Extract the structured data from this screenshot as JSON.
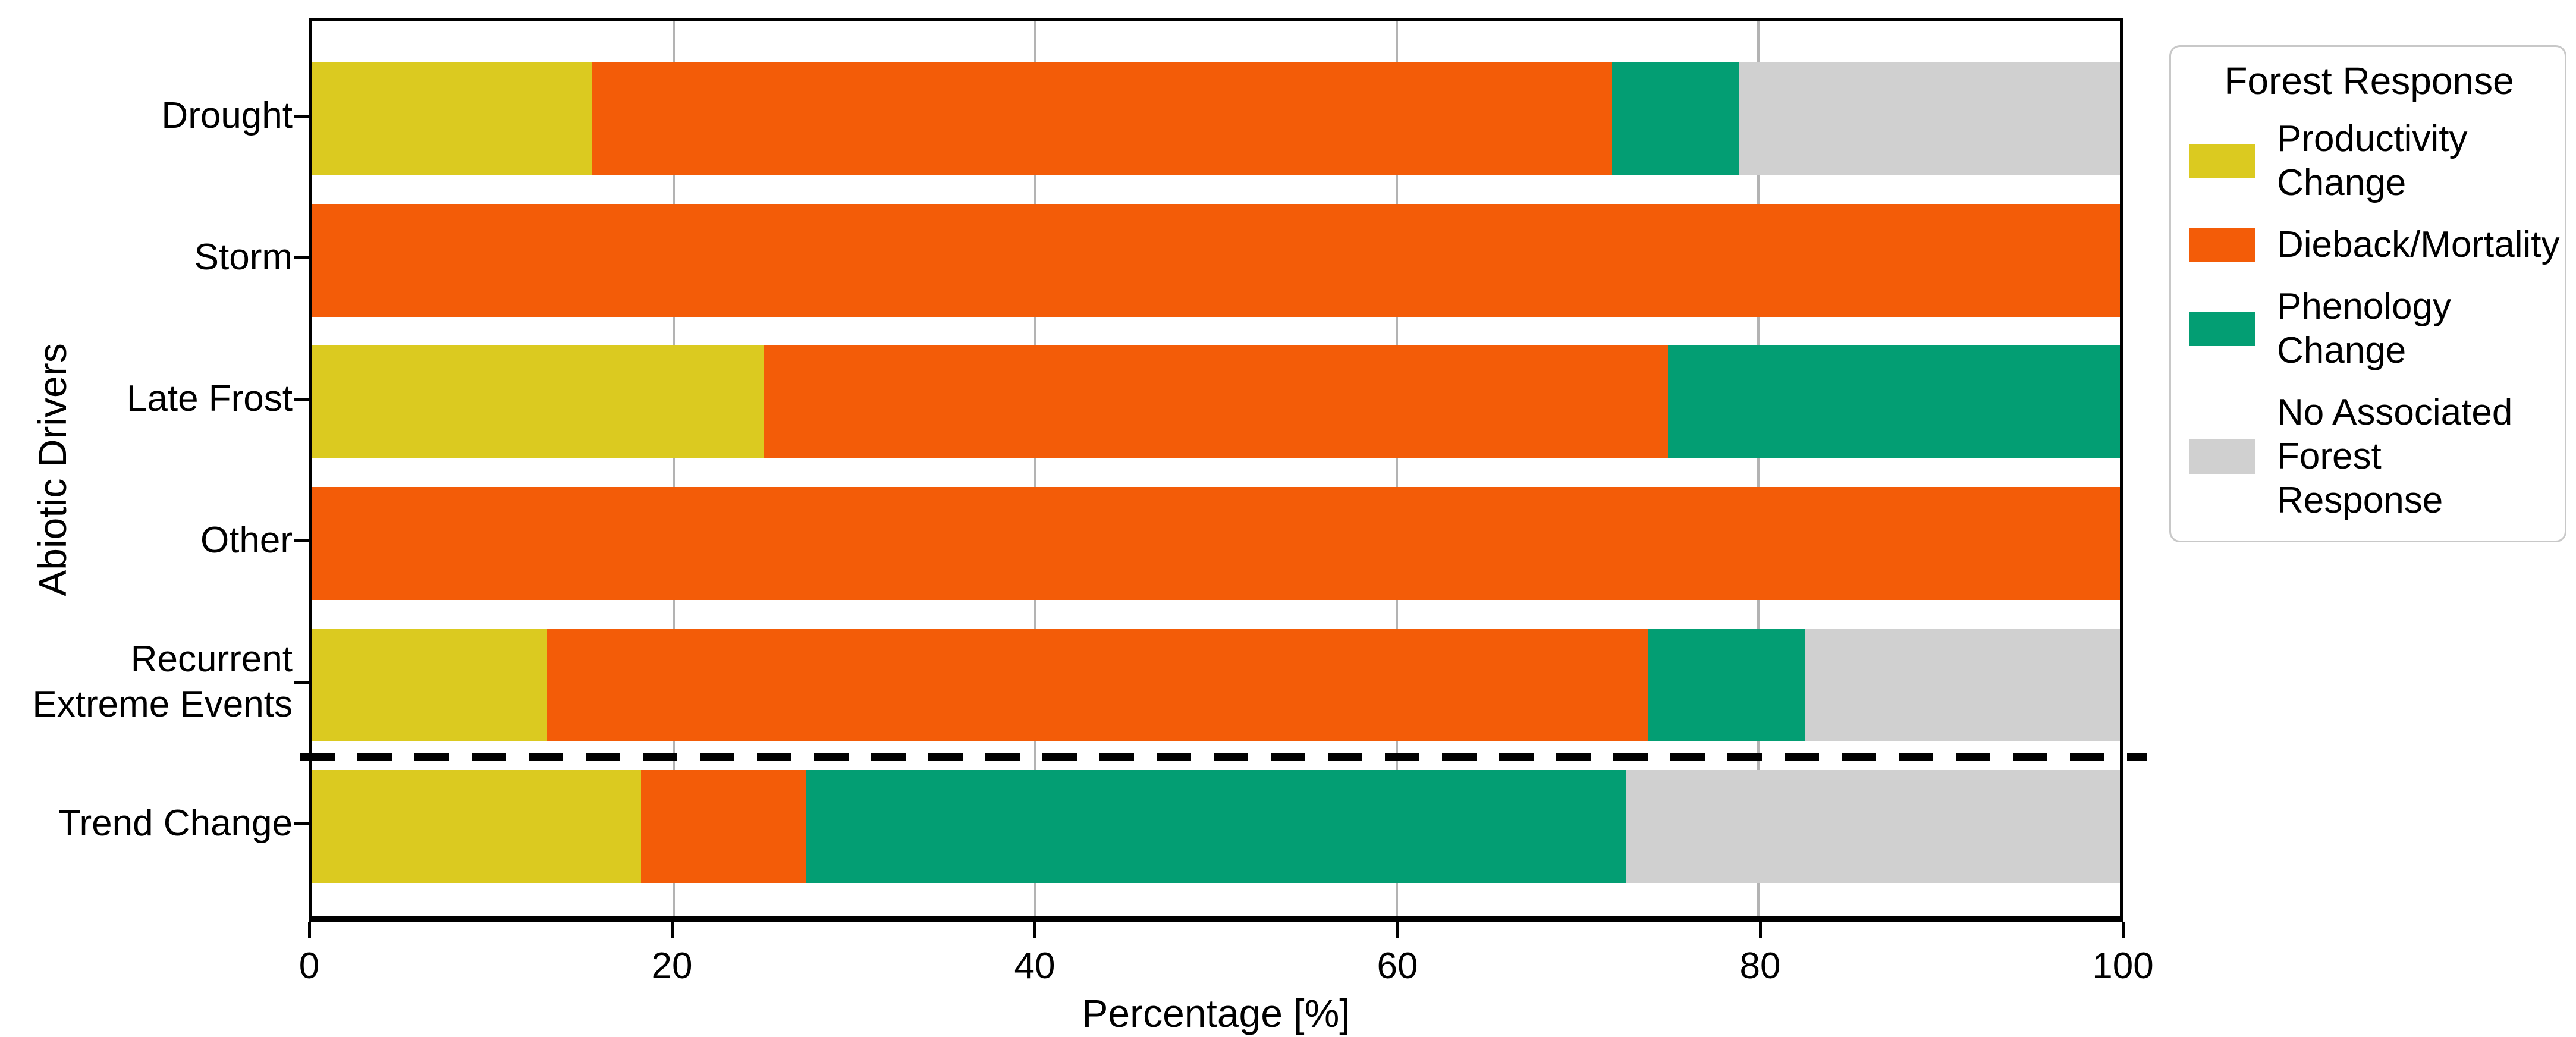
{
  "chart_data": {
    "type": "bar",
    "orientation": "horizontal",
    "stacked": true,
    "title": "",
    "xlabel": "Percentage [%]",
    "ylabel": "Abiotic Drivers",
    "xlim": [
      0,
      100
    ],
    "xticks": [
      0,
      20,
      40,
      60,
      80,
      100
    ],
    "grid": "vertical",
    "gridline_color": "#b3b3b3",
    "categories": [
      "Drought",
      "Storm",
      "Late Frost",
      "Other",
      "Recurrent\nExtreme Events",
      "Trend Change"
    ],
    "series": [
      {
        "name": "Productivity Change",
        "color": "#dbca20",
        "values": [
          15.5,
          0,
          25,
          0,
          13.0,
          18.2
        ]
      },
      {
        "name": "Dieback/Mortality",
        "color": "#f35c08",
        "values": [
          56.4,
          100,
          50,
          100,
          60.9,
          9.1
        ]
      },
      {
        "name": "Phenology Change",
        "color": "#039e73",
        "values": [
          7.0,
          0,
          25,
          0,
          8.7,
          45.4
        ]
      },
      {
        "name": "No Associated\nForest Response",
        "color": "#d0d0d0",
        "values": [
          21.1,
          0,
          0,
          0,
          17.4,
          27.3
        ]
      }
    ],
    "legend": {
      "title": "Forest Response",
      "position": "outside-upper-right",
      "labels": [
        "Productivity Change",
        "Dieback/Mortality",
        "Phenology Change",
        "No Associated\nForest Response"
      ]
    },
    "separator": {
      "type": "dashed-horizontal-line",
      "between": [
        "Recurrent\nExtreme Events",
        "Trend Change"
      ],
      "color": "#000000"
    }
  }
}
